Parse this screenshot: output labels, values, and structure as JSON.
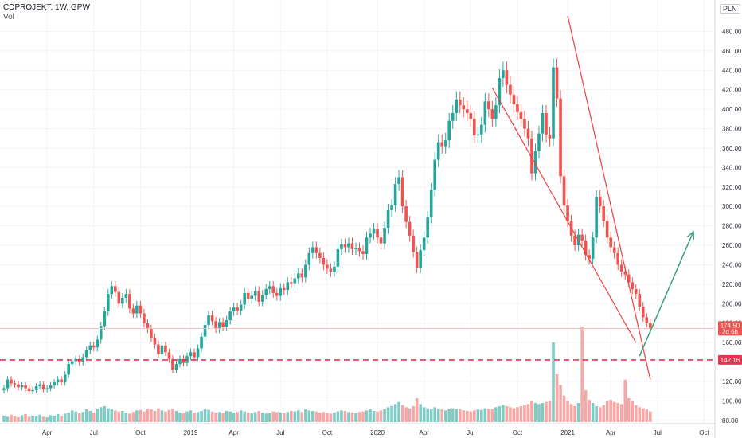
{
  "header": {
    "title": "CDPROJEKT, 1W, GPW",
    "volume_label": "Vol"
  },
  "currency_label": "PLN",
  "colors": {
    "up": "#26a69a",
    "down": "#ef5350",
    "up_volume": "#80cbc4",
    "down_volume": "#f7a7a6",
    "price_line": "#f7c0c0",
    "support_line": "#e5344f",
    "channel_line": "#ef3f3f",
    "projection_arrow": "#3d9e7e",
    "axis_text": "#2a2e39"
  },
  "chart_data": {
    "type": "candlestick",
    "title": "",
    "y_axis": {
      "range": [
        70,
        500
      ],
      "ticks": [
        80,
        100,
        120,
        140,
        160,
        180,
        200,
        220,
        240,
        260,
        280,
        300,
        320,
        340,
        360,
        380,
        400,
        420,
        440,
        460,
        480
      ],
      "tick_labels": [
        "80.00",
        "100.00",
        "120.00",
        "140.00",
        "160.00",
        "180.00",
        "200.00",
        "220.00",
        "240.00",
        "260.00",
        "280.00",
        "300.00",
        "320.00",
        "340.00",
        "360.00",
        "380.00",
        "400.00",
        "420.00",
        "440.00",
        "460.00",
        "480.00"
      ]
    },
    "x_axis": {
      "labels": [
        "Apr",
        "Jul",
        "Oct",
        "2019",
        "Apr",
        "Jul",
        "Oct",
        "2020",
        "Apr",
        "Jul",
        "Oct",
        "2021",
        "Apr",
        "Jul",
        "Oct"
      ],
      "label_weeks": [
        12,
        25,
        38,
        52,
        64,
        77,
        90,
        104,
        117,
        130,
        143,
        157,
        169,
        182,
        195
      ]
    },
    "weeks_total": 200,
    "closes": [
      113,
      122,
      118,
      117,
      114,
      116,
      113,
      110,
      111,
      115,
      117,
      112,
      113,
      116,
      119,
      122,
      119,
      127,
      138,
      141,
      143,
      140,
      145,
      152,
      157,
      155,
      163,
      177,
      192,
      210,
      218,
      212,
      200,
      206,
      210,
      195,
      190,
      198,
      190,
      180,
      174,
      165,
      158,
      148,
      157,
      150,
      143,
      132,
      138,
      143,
      139,
      146,
      150,
      145,
      154,
      166,
      178,
      188,
      182,
      174,
      181,
      176,
      183,
      192,
      196,
      193,
      199,
      211,
      205,
      208,
      213,
      202,
      209,
      215,
      218,
      211,
      208,
      216,
      214,
      222,
      221,
      226,
      231,
      227,
      240,
      252,
      258,
      252,
      247,
      240,
      236,
      233,
      238,
      256,
      261,
      258,
      262,
      256,
      257,
      254,
      251,
      268,
      272,
      277,
      268,
      262,
      278,
      296,
      301,
      323,
      330,
      300,
      284,
      270,
      253,
      237,
      255,
      268,
      289,
      317,
      348,
      366,
      362,
      368,
      388,
      396,
      410,
      404,
      400,
      396,
      390,
      373,
      374,
      384,
      408,
      400,
      390,
      404,
      432,
      440,
      425,
      415,
      405,
      397,
      390,
      380,
      370,
      334,
      357,
      375,
      396,
      374,
      370,
      443,
      411,
      331,
      301,
      285,
      270,
      260,
      271,
      265,
      250,
      246,
      268,
      310,
      300,
      285,
      268,
      258,
      252,
      240,
      233,
      230,
      222,
      215,
      210,
      197,
      186,
      180,
      174.5
    ],
    "volume_scale_max": 180,
    "volumes": [
      12,
      10,
      14,
      11,
      9,
      13,
      15,
      10,
      12,
      11,
      14,
      10,
      9,
      13,
      12,
      15,
      11,
      16,
      18,
      22,
      20,
      17,
      19,
      24,
      21,
      18,
      25,
      28,
      30,
      26,
      24,
      22,
      20,
      21,
      18,
      16,
      19,
      22,
      23,
      20,
      25,
      24,
      21,
      26,
      22,
      20,
      23,
      25,
      21,
      18,
      17,
      20,
      22,
      18,
      19,
      21,
      24,
      23,
      20,
      18,
      19,
      17,
      21,
      20,
      18,
      19,
      22,
      20,
      18,
      17,
      19,
      21,
      18,
      16,
      17,
      20,
      19,
      18,
      17,
      19,
      21,
      20,
      22,
      19,
      24,
      22,
      21,
      20,
      18,
      19,
      17,
      16,
      18,
      20,
      22,
      21,
      19,
      18,
      17,
      19,
      20,
      22,
      24,
      21,
      20,
      22,
      24,
      28,
      30,
      34,
      38,
      32,
      28,
      26,
      30,
      45,
      34,
      28,
      26,
      24,
      28,
      25,
      24,
      22,
      24,
      26,
      25,
      24,
      22,
      21,
      20,
      22,
      24,
      23,
      26,
      25,
      24,
      28,
      30,
      32,
      30,
      28,
      26,
      28,
      30,
      32,
      34,
      40,
      36,
      34,
      36,
      38,
      40,
      150,
      90,
      70,
      50,
      40,
      34,
      30,
      36,
      180,
      60,
      42,
      36,
      30,
      28,
      32,
      40,
      42,
      38,
      36,
      34,
      80,
      45,
      40,
      32,
      28,
      26,
      24,
      20
    ],
    "last_price": 174.5,
    "last_price_label": "174.50",
    "countdown_label": "2d 6h",
    "support_level": 142.16,
    "support_label": "142.16",
    "drawings": {
      "upper_trendline": {
        "from": {
          "week": 157,
          "price": 496
        },
        "to": {
          "week": 180,
          "price": 122
        }
      },
      "lower_trendline": {
        "from": {
          "week": 136,
          "price": 422
        },
        "to": {
          "week": 176,
          "price": 160
        }
      },
      "projection_arrow": {
        "from": {
          "week": 177,
          "price": 146
        },
        "to": {
          "week": 192,
          "price": 274
        }
      }
    }
  }
}
